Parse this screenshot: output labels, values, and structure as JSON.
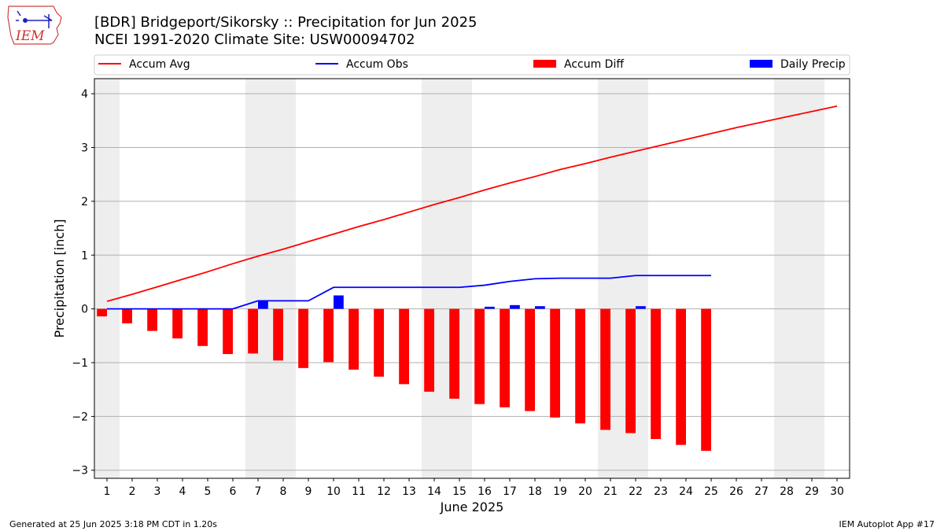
{
  "header": {
    "title_line1": "[BDR] Bridgeport/Sikorsky :: Precipitation for Jun 2025",
    "title_line2": "NCEI 1991-2020 Climate Site: USW00094702",
    "logo_text": "IEM"
  },
  "footer": {
    "generated": "Generated at 25 Jun 2025 3:18 PM CDT in 1.20s",
    "app": "IEM Autoplot App #17"
  },
  "colors": {
    "accum_avg": "#ff0000",
    "accum_obs": "#0000ff",
    "accum_diff": "#ff0000",
    "daily_precip": "#0000ff",
    "weekend_shade": "#eeeeee",
    "grid": "#b0b0b0"
  },
  "chart_data": {
    "type": "bar",
    "xlabel": "June 2025",
    "ylabel": "Precipitation [inch]",
    "xlim": [
      0.5,
      30.5
    ],
    "ylim": [
      -3.15,
      4.28
    ],
    "yticks": [
      -3,
      -2,
      -1,
      0,
      1,
      2,
      3,
      4
    ],
    "ytick_labels": [
      "−3",
      "−2",
      "−1",
      "0",
      "1",
      "2",
      "3",
      "4"
    ],
    "grid": "horizontal",
    "legend_position": "top",
    "legend": [
      "Accum Avg",
      "Accum Obs",
      "Accum Diff",
      "Daily Precip"
    ],
    "weekend_spans": [
      [
        0.5,
        1.5
      ],
      [
        6.5,
        8.5
      ],
      [
        13.5,
        15.5
      ],
      [
        20.5,
        22.5
      ],
      [
        27.5,
        29.5
      ]
    ],
    "days": [
      1,
      2,
      3,
      4,
      5,
      6,
      7,
      8,
      9,
      10,
      11,
      12,
      13,
      14,
      15,
      16,
      17,
      18,
      19,
      20,
      21,
      22,
      23,
      24,
      25,
      26,
      27,
      28,
      29,
      30
    ],
    "series": [
      {
        "name": "Accum Avg",
        "type": "line",
        "x": [
          1,
          2,
          3,
          4,
          5,
          6,
          7,
          8,
          9,
          10,
          11,
          12,
          13,
          14,
          15,
          16,
          17,
          18,
          19,
          20,
          21,
          22,
          23,
          24,
          25,
          26,
          27,
          28,
          29,
          30
        ],
        "values": [
          0.14,
          0.27,
          0.41,
          0.55,
          0.69,
          0.84,
          0.98,
          1.11,
          1.25,
          1.39,
          1.53,
          1.66,
          1.8,
          1.94,
          2.07,
          2.21,
          2.34,
          2.46,
          2.59,
          2.7,
          2.82,
          2.93,
          3.04,
          3.15,
          3.26,
          3.37,
          3.47,
          3.57,
          3.67,
          3.77
        ]
      },
      {
        "name": "Accum Obs",
        "type": "line",
        "x": [
          1,
          2,
          3,
          4,
          5,
          6,
          7,
          8,
          9,
          10,
          11,
          12,
          13,
          14,
          15,
          16,
          17,
          18,
          19,
          20,
          21,
          22,
          23,
          24,
          25
        ],
        "values": [
          0,
          0,
          0,
          0,
          0,
          0,
          0.15,
          0.15,
          0.15,
          0.4,
          0.4,
          0.4,
          0.4,
          0.4,
          0.4,
          0.44,
          0.51,
          0.56,
          0.57,
          0.57,
          0.57,
          0.62,
          0.62,
          0.62,
          0.62
        ]
      },
      {
        "name": "Accum Diff",
        "type": "bar",
        "x": [
          1,
          2,
          3,
          4,
          5,
          6,
          7,
          8,
          9,
          10,
          11,
          12,
          13,
          14,
          15,
          16,
          17,
          18,
          19,
          20,
          21,
          22,
          23,
          24,
          25
        ],
        "values": [
          -0.14,
          -0.27,
          -0.41,
          -0.55,
          -0.69,
          -0.84,
          -0.83,
          -0.96,
          -1.1,
          -0.99,
          -1.13,
          -1.26,
          -1.4,
          -1.54,
          -1.67,
          -1.77,
          -1.83,
          -1.9,
          -2.02,
          -2.13,
          -2.25,
          -2.31,
          -2.42,
          -2.53,
          -2.64
        ]
      },
      {
        "name": "Daily Precip",
        "type": "bar",
        "x": [
          1,
          2,
          3,
          4,
          5,
          6,
          7,
          8,
          9,
          10,
          11,
          12,
          13,
          14,
          15,
          16,
          17,
          18,
          19,
          20,
          21,
          22,
          23,
          24,
          25
        ],
        "values": [
          0,
          0,
          0,
          0,
          0,
          0,
          0.15,
          0,
          0,
          0.25,
          0,
          0,
          0,
          0,
          0,
          0.04,
          0.07,
          0.05,
          0,
          0,
          0,
          0.05,
          0,
          0,
          0
        ]
      }
    ]
  }
}
